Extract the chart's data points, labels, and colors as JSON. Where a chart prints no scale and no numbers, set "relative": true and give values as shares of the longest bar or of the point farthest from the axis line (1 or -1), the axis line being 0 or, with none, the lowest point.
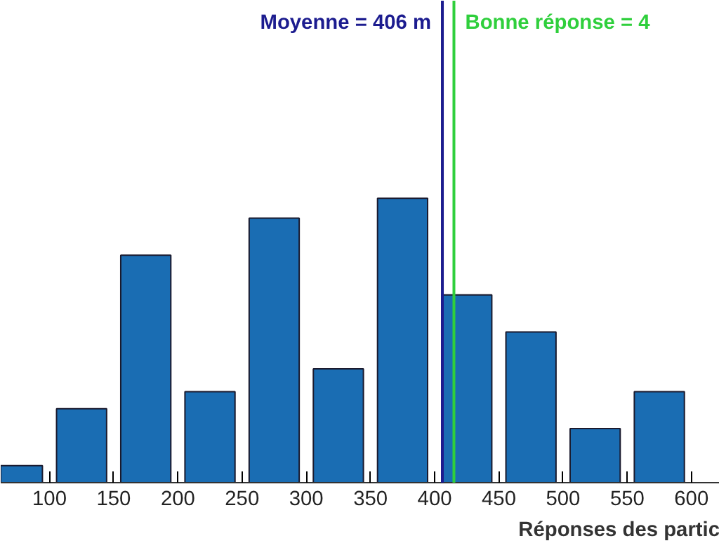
{
  "chart_data": {
    "type": "bar",
    "relative": true,
    "xlabel": "Réponses des partic",
    "x": [
      75,
      125,
      175,
      225,
      275,
      325,
      375,
      425,
      475,
      525,
      575
    ],
    "values": [
      0.06,
      0.26,
      0.8,
      0.32,
      0.93,
      0.4,
      1,
      0.66,
      0.53,
      0.19,
      0.32
    ],
    "color": "#1a6db3",
    "xlim": [
      62,
      622
    ],
    "xticks": [
      100,
      150,
      200,
      250,
      300,
      350,
      400,
      450,
      500,
      550,
      600
    ],
    "ref_lines": [
      {
        "axis": "x",
        "value": 406,
        "label": "Moyenne = 406 m",
        "color": "#1c1c8f"
      },
      {
        "axis": "x",
        "value": 415,
        "color": "#2fcf3c"
      }
    ],
    "annotations": [
      "Bonne réponse = 4"
    ],
    "grid": false
  }
}
